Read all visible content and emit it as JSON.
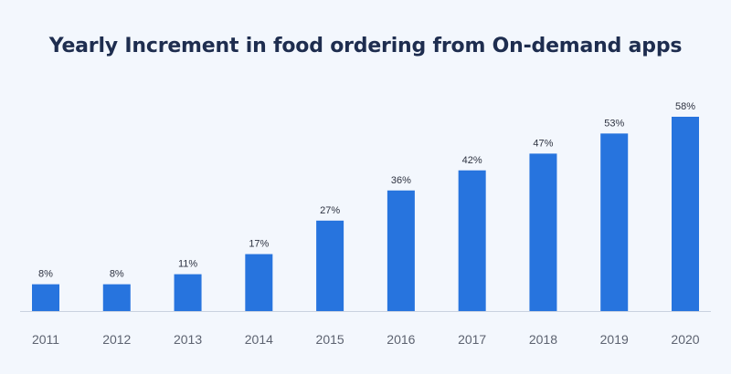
{
  "chart_data": {
    "type": "bar",
    "title": "Yearly Increment in food ordering from On-demand apps",
    "categories": [
      "2011",
      "2012",
      "2013",
      "2014",
      "2015",
      "2016",
      "2017",
      "2018",
      "2019",
      "2020"
    ],
    "values": [
      8,
      8,
      11,
      17,
      27,
      36,
      42,
      47,
      53,
      58
    ],
    "value_labels": [
      "8%",
      "8%",
      "11%",
      "17%",
      "27%",
      "36%",
      "42%",
      "47%",
      "53%",
      "58%"
    ],
    "xlabel": "",
    "ylabel": "",
    "ylim": [
      0,
      58
    ],
    "grid": false,
    "legend": "none",
    "colors": {
      "bar": "#2774de",
      "background": "#f3f7fd",
      "title": "#1e2d4f",
      "axis": "#c9d2e0"
    }
  }
}
